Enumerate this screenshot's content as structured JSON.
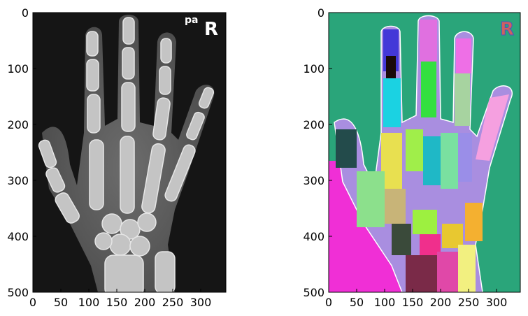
{
  "figure": {
    "panels": [
      {
        "name": "xray",
        "overlay_text": {
          "small": "pa",
          "large": "R"
        },
        "x_ticks": [
          "0",
          "50",
          "100",
          "150",
          "200",
          "250",
          "300"
        ],
        "y_ticks": [
          "0",
          "100",
          "200",
          "300",
          "400",
          "500"
        ]
      },
      {
        "name": "segmentation",
        "overlay_text": {
          "large": "R"
        },
        "x_ticks": [
          "0",
          "50",
          "100",
          "150",
          "200",
          "250",
          "300"
        ],
        "y_ticks": [
          "0",
          "100",
          "200",
          "300",
          "400",
          "500"
        ]
      }
    ],
    "colors": {
      "xray_background": "#151515",
      "xray_bone": "#bdbdbd",
      "seg_background": "#2aa57a",
      "seg_forearm": "#f02fd6"
    }
  }
}
